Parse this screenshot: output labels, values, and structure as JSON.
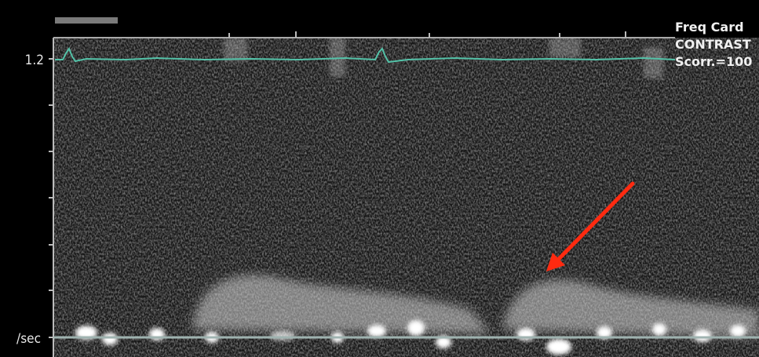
{
  "axis_labels": {
    "top": "1.2",
    "bottom": "/sec"
  },
  "info": [
    "Freq Card",
    "CONTRAST",
    "Scorr.=100"
  ]
}
